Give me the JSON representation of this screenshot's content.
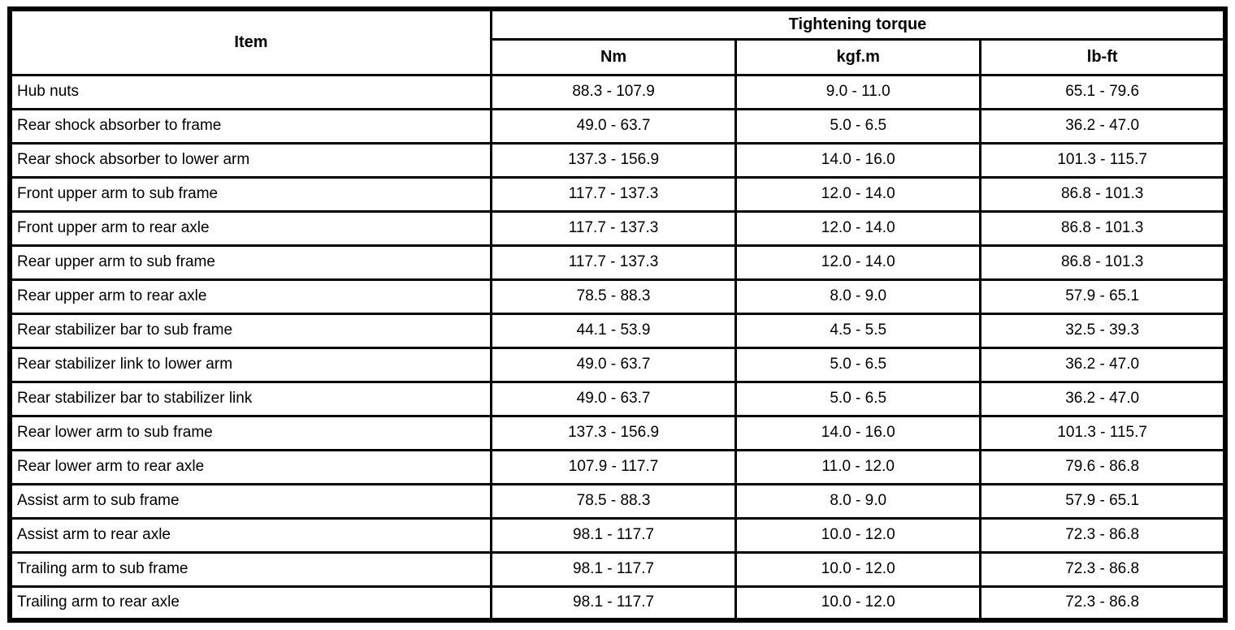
{
  "table": {
    "header": {
      "item_label": "Item",
      "group_label": "Tightening torque",
      "unit_columns": [
        "Nm",
        "kgf.m",
        "lb-ft"
      ]
    },
    "rows": [
      {
        "item": "Hub nuts",
        "nm": "88.3 - 107.9",
        "kgfm": "9.0 - 11.0",
        "lbft": "65.1 - 79.6"
      },
      {
        "item": "Rear shock absorber to frame",
        "nm": "49.0 - 63.7",
        "kgfm": "5.0 - 6.5",
        "lbft": "36.2 - 47.0"
      },
      {
        "item": "Rear shock absorber to lower arm",
        "nm": "137.3 - 156.9",
        "kgfm": "14.0 - 16.0",
        "lbft": "101.3 - 115.7"
      },
      {
        "item": "Front upper arm to sub frame",
        "nm": "117.7 - 137.3",
        "kgfm": "12.0 - 14.0",
        "lbft": "86.8 - 101.3"
      },
      {
        "item": "Front upper arm to rear axle",
        "nm": "117.7 - 137.3",
        "kgfm": "12.0 - 14.0",
        "lbft": "86.8 - 101.3"
      },
      {
        "item": "Rear upper arm to sub frame",
        "nm": "117.7 - 137.3",
        "kgfm": "12.0 - 14.0",
        "lbft": "86.8 - 101.3"
      },
      {
        "item": "Rear upper arm to rear axle",
        "nm": "78.5 - 88.3",
        "kgfm": "8.0 - 9.0",
        "lbft": "57.9 - 65.1"
      },
      {
        "item": "Rear stabilizer bar to sub frame",
        "nm": "44.1 - 53.9",
        "kgfm": "4.5 - 5.5",
        "lbft": "32.5 - 39.3"
      },
      {
        "item": "Rear stabilizer link to lower arm",
        "nm": "49.0 - 63.7",
        "kgfm": "5.0 - 6.5",
        "lbft": "36.2 - 47.0"
      },
      {
        "item": "Rear stabilizer bar to stabilizer link",
        "nm": "49.0 - 63.7",
        "kgfm": "5.0 - 6.5",
        "lbft": "36.2 - 47.0"
      },
      {
        "item": "Rear lower arm to sub frame",
        "nm": "137.3 - 156.9",
        "kgfm": "14.0 - 16.0",
        "lbft": "101.3 - 115.7"
      },
      {
        "item": "Rear lower arm to rear axle",
        "nm": "107.9 - 117.7",
        "kgfm": "11.0 - 12.0",
        "lbft": "79.6 - 86.8"
      },
      {
        "item": "Assist arm to sub frame",
        "nm": "78.5 - 88.3",
        "kgfm": "8.0 - 9.0",
        "lbft": "57.9 - 65.1"
      },
      {
        "item": "Assist arm to rear axle",
        "nm": "98.1 - 117.7",
        "kgfm": "10.0 - 12.0",
        "lbft": "72.3 - 86.8"
      },
      {
        "item": "Trailing arm to sub frame",
        "nm": "98.1 - 117.7",
        "kgfm": "10.0 - 12.0",
        "lbft": "72.3 - 86.8"
      },
      {
        "item": "Trailing arm to rear axle",
        "nm": "98.1 - 117.7",
        "kgfm": "10.0 - 12.0",
        "lbft": "72.3 - 86.8"
      }
    ],
    "colors": {
      "border": "#000000",
      "text": "#000000",
      "background": "#ffffff"
    }
  }
}
